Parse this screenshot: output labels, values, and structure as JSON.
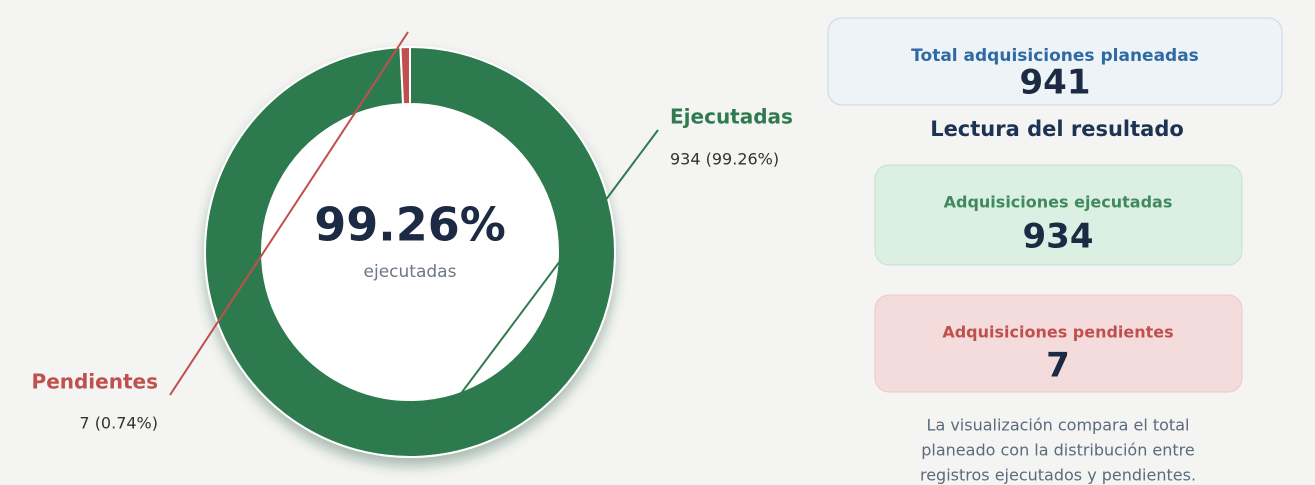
{
  "chart_data": {
    "type": "donut",
    "categories": [
      "Ejecutadas",
      "Pendientes"
    ],
    "values": [
      934,
      7
    ],
    "value_labels": [
      "934 (99.26%)",
      "7 (0.74%)"
    ],
    "colors": [
      "#2f7a4f",
      "#c0504d"
    ],
    "center_label": "99.26%",
    "center_sublabel": "ejecutadas"
  },
  "panel": {
    "total": {
      "title": "Total adquisiciones planeadas",
      "value": 941
    },
    "heading": "Lectura del resultado",
    "executed": {
      "title": "Adquisiciones ejecutadas",
      "value": 934
    },
    "pending": {
      "title": "Adquisiciones pendientes",
      "value": 7
    },
    "description": [
      "La visualización compara el total",
      "planeado con la distribución entre",
      "registros ejecutados y pendientes."
    ]
  }
}
